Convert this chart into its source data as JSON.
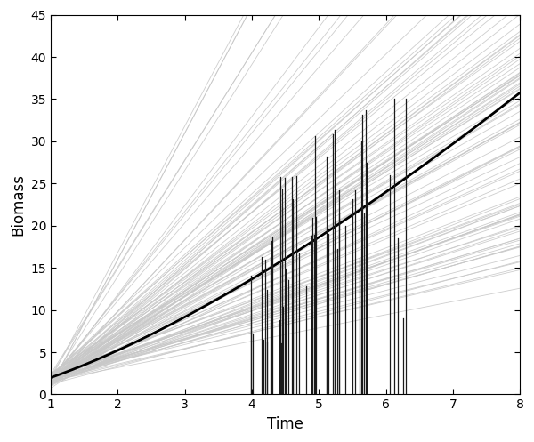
{
  "title": "",
  "xlabel": "Time",
  "ylabel": "Biomass",
  "xlim": [
    1,
    8
  ],
  "ylim": [
    0,
    45
  ],
  "xticks": [
    1,
    2,
    3,
    4,
    5,
    6,
    7,
    8
  ],
  "yticks": [
    0,
    5,
    10,
    15,
    20,
    25,
    30,
    35,
    40,
    45
  ],
  "mean_curve_color": "#000000",
  "mean_curve_lw": 2.0,
  "individual_color": "#c8c8c8",
  "individual_lw": 0.6,
  "event_line_color": "#1a1a1a",
  "event_line_lw": 0.9,
  "n_individuals": 100,
  "random_seed": 42,
  "n_events": 60,
  "background_color": "#ffffff",
  "figsize": [
    6.0,
    4.97
  ],
  "dpi": 100
}
